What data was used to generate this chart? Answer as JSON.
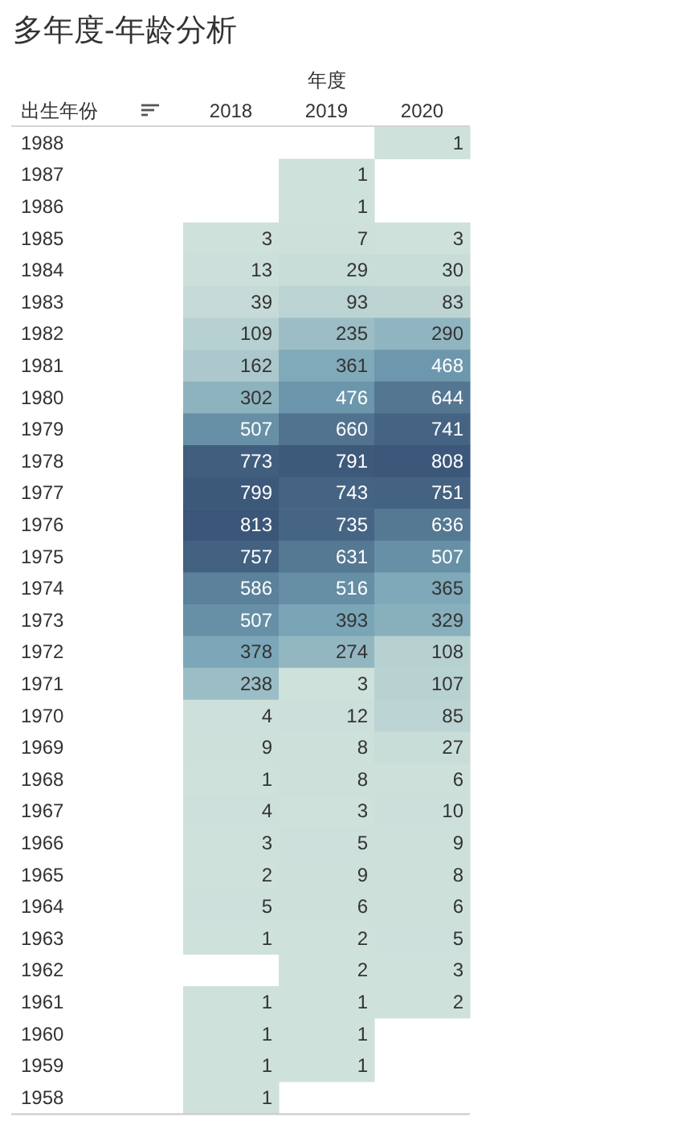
{
  "chart_data": {
    "type": "heatmap",
    "title": "多年度-年龄分析",
    "xlabel": "年度",
    "ylabel": "出生年份",
    "categories": [
      "2018",
      "2019",
      "2020"
    ],
    "y_categories": [
      "1988",
      "1987",
      "1986",
      "1985",
      "1984",
      "1983",
      "1982",
      "1981",
      "1980",
      "1979",
      "1978",
      "1977",
      "1976",
      "1975",
      "1974",
      "1973",
      "1972",
      "1971",
      "1970",
      "1969",
      "1968",
      "1967",
      "1966",
      "1965",
      "1964",
      "1963",
      "1962",
      "1961",
      "1960",
      "1959",
      "1958"
    ],
    "cells": [
      [
        null,
        null,
        1
      ],
      [
        null,
        1,
        null
      ],
      [
        null,
        1,
        null
      ],
      [
        3,
        7,
        3
      ],
      [
        13,
        29,
        30
      ],
      [
        39,
        93,
        83
      ],
      [
        109,
        235,
        290
      ],
      [
        162,
        361,
        468
      ],
      [
        302,
        476,
        644
      ],
      [
        507,
        660,
        741
      ],
      [
        773,
        791,
        808
      ],
      [
        799,
        743,
        751
      ],
      [
        813,
        735,
        636
      ],
      [
        757,
        631,
        507
      ],
      [
        586,
        516,
        365
      ],
      [
        507,
        393,
        329
      ],
      [
        378,
        274,
        108
      ],
      [
        238,
        3,
        107
      ],
      [
        4,
        12,
        85
      ],
      [
        9,
        8,
        27
      ],
      [
        1,
        8,
        6
      ],
      [
        4,
        3,
        10
      ],
      [
        3,
        5,
        9
      ],
      [
        2,
        9,
        8
      ],
      [
        5,
        6,
        6
      ],
      [
        1,
        2,
        5
      ],
      [
        null,
        2,
        3
      ],
      [
        1,
        1,
        2
      ],
      [
        1,
        1,
        null
      ],
      [
        1,
        1,
        null
      ],
      [
        1,
        null,
        null
      ]
    ],
    "data_labels": true
  }
}
